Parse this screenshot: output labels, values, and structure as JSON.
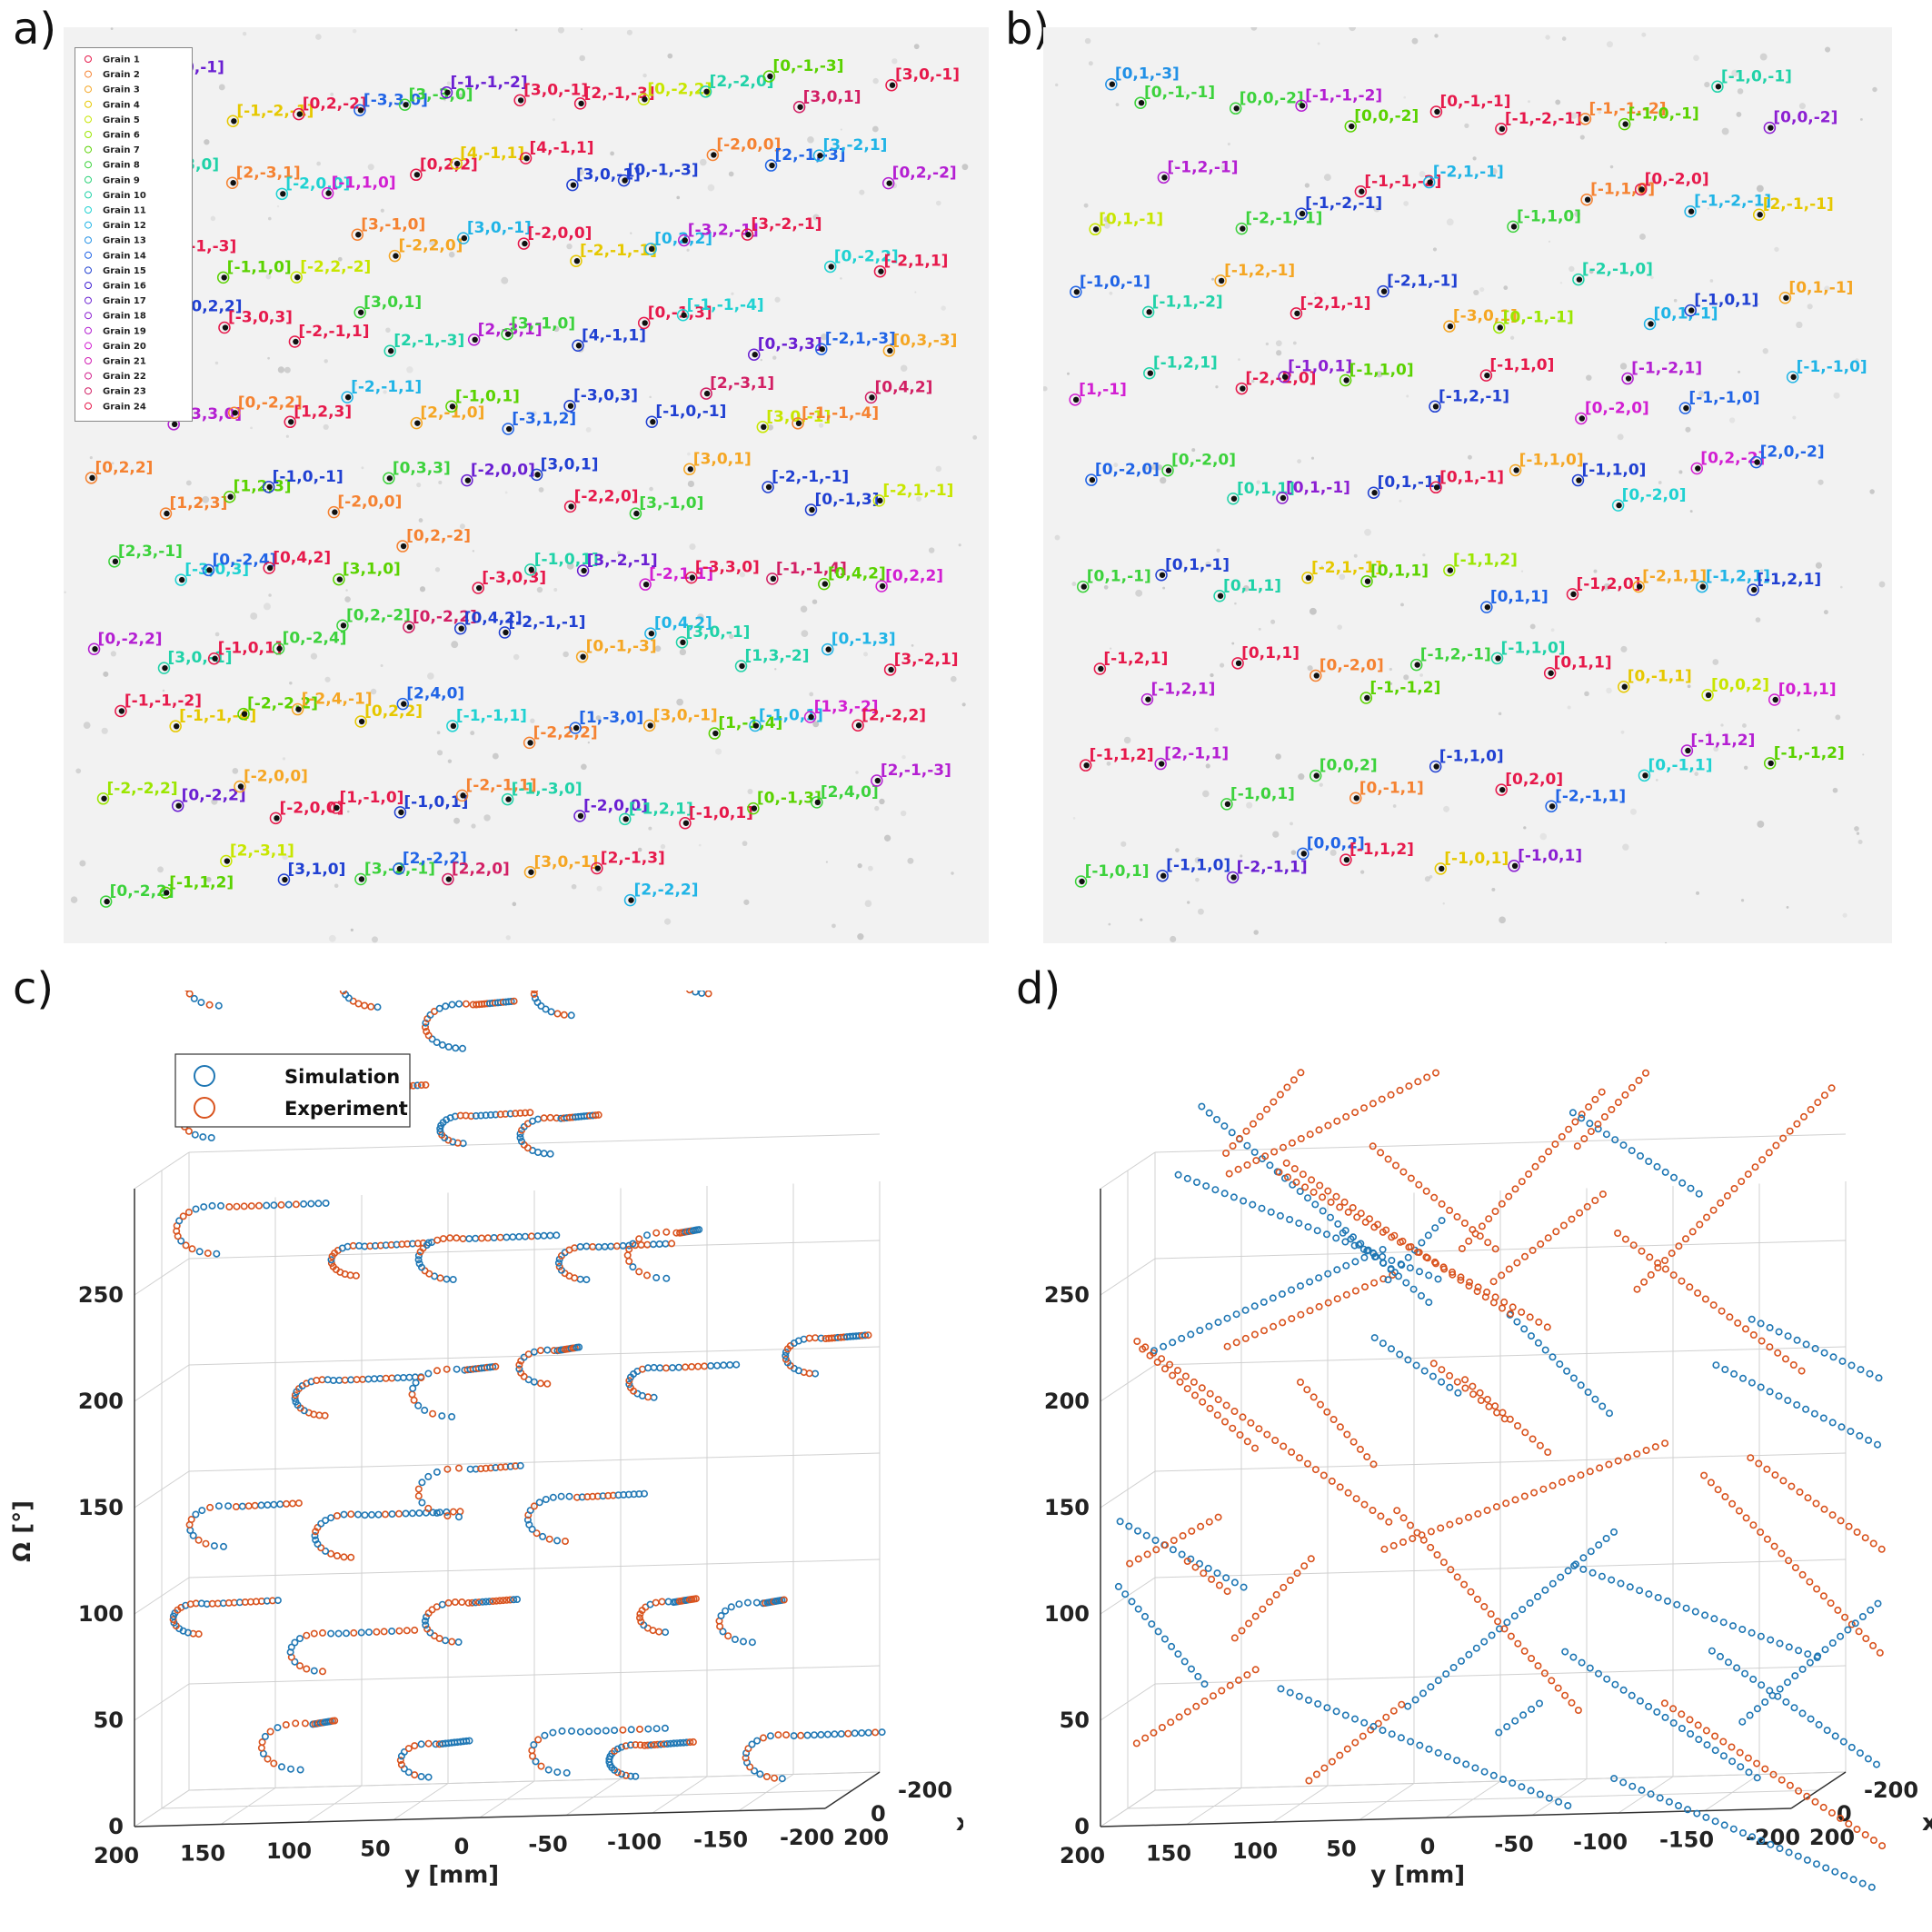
{
  "labels": {
    "a": "a)",
    "b": "b)",
    "c": "c)",
    "d": "d)"
  },
  "colors": {
    "simulation": "#1f77b4",
    "experiment": "#d9531e"
  },
  "legend_a": {
    "grains": [
      "Grain 1",
      "Grain 2",
      "Grain 3",
      "Grain 4",
      "Grain 5",
      "Grain 6",
      "Grain 7",
      "Grain 8",
      "Grain 9",
      "Grain 10",
      "Grain 11",
      "Grain 12",
      "Grain 13",
      "Grain 14",
      "Grain 15",
      "Grain 16",
      "Grain 17",
      "Grain 18",
      "Grain 19",
      "Grain 20",
      "Grain 21",
      "Grain 22",
      "Grain 23",
      "Grain 24"
    ],
    "grain_colors": [
      "#e6194b",
      "#f58231",
      "#f5a623",
      "#e6c800",
      "#c8e600",
      "#9be600",
      "#5ad200",
      "#3cd23c",
      "#2ad278",
      "#20d2a8",
      "#20d2d2",
      "#20b4e6",
      "#2090e6",
      "#2064e6",
      "#2040d2",
      "#4020d2",
      "#6a1fd2",
      "#8c1fd2",
      "#b41fd2",
      "#d21fd2",
      "#d21fb4",
      "#d21f8c",
      "#d21f64",
      "#e6194b"
    ]
  },
  "panel_a_labels": [
    [
      "[3,1,0]",
      "#e6194b"
    ],
    [
      "[-1,0,-1]",
      "#6a1fd2"
    ],
    [
      "[-1,-2,-1]",
      "#e6c800"
    ],
    [
      "[0,2,-2]",
      "#e6194b"
    ],
    [
      "[-3,3,0]",
      "#2064e6"
    ],
    [
      "[3,-3,0]",
      "#3cd23c"
    ],
    [
      "[-1,-1,-2]",
      "#6a1fd2"
    ],
    [
      "[3,0,-1]",
      "#e6194b"
    ],
    [
      "[2,-1,-3]",
      "#e6194b"
    ],
    [
      "[0,-2,2]",
      "#c8e600"
    ],
    [
      "[2,-2,0]",
      "#20d2a8"
    ],
    [
      "[0,-1,-3]",
      "#5ad200"
    ],
    [
      "[3,0,1]",
      "#d21f64"
    ],
    [
      "[3,0,-1]",
      "#e6194b"
    ],
    [
      "[-3,0,3]",
      "#3cd23c"
    ],
    [
      "[-3,3,0]",
      "#20d2a8"
    ],
    [
      "[2,-3,1]",
      "#f58231"
    ],
    [
      "[-2,0,0]",
      "#20d2d2"
    ],
    [
      "[-1,1,0]",
      "#d21fd2"
    ],
    [
      "[0,2,2]",
      "#e6194b"
    ],
    [
      "[4,-1,1]",
      "#e6c800"
    ],
    [
      "[4,-1,1]",
      "#e6194b"
    ],
    [
      "[3,0,-1]",
      "#2040d2"
    ],
    [
      "[0,-1,-3]",
      "#2040d2"
    ],
    [
      "[-2,0,0]",
      "#f58231"
    ],
    [
      "[2,-1,-3]",
      "#2064e6"
    ],
    [
      "[3,-2,1]",
      "#20b4e6"
    ],
    [
      "[0,2,-2]",
      "#b41fd2"
    ],
    [
      "[-2,-1,-1]",
      "#b41fd2"
    ],
    [
      "[2,-1,-3]",
      "#e6194b"
    ],
    [
      "[-1,1,0]",
      "#5ad200"
    ],
    [
      "[-2,2,-2]",
      "#c8e600"
    ],
    [
      "[3,-1,0]",
      "#f58231"
    ],
    [
      "[-2,2,0]",
      "#f5a623"
    ],
    [
      "[3,0,-1]",
      "#20b4e6"
    ],
    [
      "[-2,0,0]",
      "#e6194b"
    ],
    [
      "[-2,-1,-1]",
      "#e6c800"
    ],
    [
      "[0,2,2]",
      "#20b4e6"
    ],
    [
      "[-3,2,-1]",
      "#b41fd2"
    ],
    [
      "[3,-2,-1]",
      "#e6194b"
    ],
    [
      "[0,-2,2]",
      "#20d2d2"
    ],
    [
      "[-2,1,1]",
      "#e6194b"
    ],
    [
      "[-2,0,0]",
      "#e6194b"
    ],
    [
      "[0,2,2]",
      "#2040d2"
    ],
    [
      "[-3,0,3]",
      "#e6194b"
    ],
    [
      "[-2,-1,1]",
      "#e6194b"
    ],
    [
      "[3,0,1]",
      "#3cd23c"
    ],
    [
      "[2,-1,-3]",
      "#20d2a8"
    ],
    [
      "[2,-3,1]",
      "#b41fd2"
    ],
    [
      "[3,-1,0]",
      "#3cd23c"
    ],
    [
      "[4,-1,1]",
      "#2040d2"
    ],
    [
      "[0,-1,3]",
      "#e6194b"
    ],
    [
      "[-1,-1,-4]",
      "#20d2d2"
    ],
    [
      "[0,-3,3]",
      "#6a1fd2"
    ],
    [
      "[-2,1,-3]",
      "#2064e6"
    ],
    [
      "[0,3,-3]",
      "#f5a623"
    ],
    [
      "[-1,-1,0]",
      "#5ad200"
    ],
    [
      "[-3,3,0]",
      "#b41fd2"
    ],
    [
      "[0,-2,2]",
      "#f58231"
    ],
    [
      "[1,2,3]",
      "#e6194b"
    ],
    [
      "[-2,-1,1]",
      "#20b4e6"
    ],
    [
      "[2,-1,0]",
      "#f5a623"
    ],
    [
      "[-1,0,1]",
      "#5ad200"
    ],
    [
      "[-3,1,2]",
      "#2064e6"
    ],
    [
      "[-3,0,3]",
      "#2040d2"
    ],
    [
      "[-1,0,-1]",
      "#2040d2"
    ],
    [
      "[2,-3,1]",
      "#d21f64"
    ],
    [
      "[3,0,-1]",
      "#c8e600"
    ],
    [
      "[-1,-1,-4]",
      "#f58231"
    ],
    [
      "[0,4,2]",
      "#d21f64"
    ],
    [
      "[0,2,2]",
      "#f58231"
    ],
    [
      "[1,2,3]",
      "#f58231"
    ],
    [
      "[1,2,3]",
      "#5ad200"
    ],
    [
      "[-1,0,-1]",
      "#2040d2"
    ],
    [
      "[-2,0,0]",
      "#f58231"
    ],
    [
      "[0,3,3]",
      "#3cd23c"
    ],
    [
      "[-2,0,0]",
      "#6a1fd2"
    ],
    [
      "[3,0,1]",
      "#2040d2"
    ],
    [
      "[-2,2,0]",
      "#e6194b"
    ],
    [
      "[3,-1,0]",
      "#3cd23c"
    ],
    [
      "[3,0,1]",
      "#f5a623"
    ],
    [
      "[-2,-1,-1]",
      "#2040d2"
    ],
    [
      "[0,-1,3]",
      "#2040d2"
    ],
    [
      "[-2,1,-1]",
      "#c8e600"
    ],
    [
      "[2,3,-1]",
      "#3cd23c"
    ],
    [
      "[-3,0,3]",
      "#20d2d2"
    ],
    [
      "[0,-2,4]",
      "#2064e6"
    ],
    [
      "[0,4,2]",
      "#e6194b"
    ],
    [
      "[3,1,0]",
      "#5ad200"
    ],
    [
      "[0,2,-2]",
      "#f58231"
    ],
    [
      "[-3,0,3]",
      "#e6194b"
    ],
    [
      "[-1,0,1]",
      "#20d2a8"
    ],
    [
      "[3,-2,-1]",
      "#6a1fd2"
    ],
    [
      "[-2,1,1]",
      "#d21fd2"
    ],
    [
      "[-3,3,0]",
      "#e6194b"
    ],
    [
      "[-1,-1,4]",
      "#d21f64"
    ],
    [
      "[0,4,2]",
      "#5ad200"
    ],
    [
      "[0,2,2]",
      "#d21fd2"
    ],
    [
      "[0,-2,2]",
      "#b41fd2"
    ],
    [
      "[3,0,-1]",
      "#20d2a8"
    ],
    [
      "[-1,0,1]",
      "#e6194b"
    ],
    [
      "[0,-2,4]",
      "#3cd23c"
    ],
    [
      "[0,2,-2]",
      "#3cd23c"
    ],
    [
      "[0,-2,2]",
      "#d21f64"
    ],
    [
      "[0,4,2]",
      "#2040d2"
    ],
    [
      "[-2,-1,-1]",
      "#2040d2"
    ],
    [
      "[0,-1,-3]",
      "#f5a623"
    ],
    [
      "[0,4,2]",
      "#20b4e6"
    ],
    [
      "[3,0,-1]",
      "#20d2a8"
    ],
    [
      "[1,3,-2]",
      "#20d2a8"
    ],
    [
      "[0,-1,3]",
      "#20b4e6"
    ],
    [
      "[3,-2,1]",
      "#e6194b"
    ],
    [
      "[-1,-1,-2]",
      "#e6194b"
    ],
    [
      "[-1,-1,-4]",
      "#e6c800"
    ],
    [
      "[-2,-2,2]",
      "#5ad200"
    ],
    [
      "[-2,4,-1]",
      "#f5a623"
    ],
    [
      "[0,2,2]",
      "#e6c800"
    ],
    [
      "[2,4,0]",
      "#2064e6"
    ],
    [
      "[-1,-1,1]",
      "#20d2d2"
    ],
    [
      "[-2,2,2]",
      "#f58231"
    ],
    [
      "[1,-3,0]",
      "#2064e6"
    ],
    [
      "[3,0,-1]",
      "#f5a623"
    ],
    [
      "[1,-1,4]",
      "#5ad200"
    ],
    [
      "[-1,0,1]",
      "#20b4e6"
    ],
    [
      "[1,3,-2]",
      "#d21fd2"
    ],
    [
      "[2,-2,2]",
      "#e6194b"
    ],
    [
      "[-2,-2,2]",
      "#9be600"
    ],
    [
      "[0,-2,2]",
      "#6a1fd2"
    ],
    [
      "[-2,0,0]",
      "#f5a623"
    ],
    [
      "[-2,0,0]",
      "#e6194b"
    ],
    [
      "[1,-1,0]",
      "#e6194b"
    ],
    [
      "[-1,0,1]",
      "#2040d2"
    ],
    [
      "[-2,-1,1]",
      "#f58231"
    ],
    [
      "[-1,-3,0]",
      "#20d2a8"
    ],
    [
      "[-2,0,0]",
      "#6a1fd2"
    ],
    [
      "[-1,2,1]",
      "#20d2a8"
    ],
    [
      "[-1,0,1]",
      "#e6194b"
    ],
    [
      "[0,-1,3]",
      "#5ad200"
    ],
    [
      "[2,4,0]",
      "#3cd23c"
    ],
    [
      "[2,-1,-3]",
      "#b41fd2"
    ],
    [
      "[0,-2,2]",
      "#3cd23c"
    ],
    [
      "[-1,1,2]",
      "#5ad200"
    ],
    [
      "[2,-3,1]",
      "#c8e600"
    ],
    [
      "[3,1,0]",
      "#2040d2"
    ],
    [
      "[3,-2,-1]",
      "#3cd23c"
    ],
    [
      "[2,-2,2]",
      "#2064e6"
    ],
    [
      "[2,2,0]",
      "#d21f64"
    ],
    [
      "[3,0,-1]",
      "#f5a623"
    ],
    [
      "[2,-1,3]",
      "#e6194b"
    ],
    [
      "[2,-2,2]",
      "#20b4e6"
    ]
  ],
  "panel_b_labels": [
    [
      "[0,1,-3]",
      "#2090e6"
    ],
    [
      "[0,-1,-1]",
      "#3cd23c"
    ],
    [
      "[0,0,-2]",
      "#3cd23c"
    ],
    [
      "[-1,-1,-2]",
      "#b41fd2"
    ],
    [
      "[0,0,-2]",
      "#5ad200"
    ],
    [
      "[0,-1,-1]",
      "#e6194b"
    ],
    [
      "[-1,-2,-1]",
      "#e6194b"
    ],
    [
      "[-1,-1,-2]",
      "#f58231"
    ],
    [
      "[-1,0,-1]",
      "#5ad200"
    ],
    [
      "[-1,0,-1]",
      "#20d2a8"
    ],
    [
      "[0,0,-2]",
      "#8c1fd2"
    ],
    [
      "[0,1,-1]",
      "#c8e600"
    ],
    [
      "[-1,2,-1]",
      "#b41fd2"
    ],
    [
      "[-2,-1,-1]",
      "#3cd23c"
    ],
    [
      "[-1,-2,-1]",
      "#2040d2"
    ],
    [
      "[-1,-1,-2]",
      "#e6194b"
    ],
    [
      "[-2,1,-1]",
      "#20b4e6"
    ],
    [
      "[-1,1,0]",
      "#3cd23c"
    ],
    [
      "[-1,1,0]",
      "#f58231"
    ],
    [
      "[0,-2,0]",
      "#e6194b"
    ],
    [
      "[-1,-2,-1]",
      "#20b4e6"
    ],
    [
      "[2,-1,-1]",
      "#e6c800"
    ],
    [
      "[-1,0,-1]",
      "#2064e6"
    ],
    [
      "[-1,1,-2]",
      "#20d2a8"
    ],
    [
      "[-1,2,-1]",
      "#f5a623"
    ],
    [
      "[-2,1,-1]",
      "#e6194b"
    ],
    [
      "[-2,1,-1]",
      "#2040d2"
    ],
    [
      "[-3,0,1]",
      "#f5a623"
    ],
    [
      "[0,-1,-1]",
      "#9be600"
    ],
    [
      "[-2,-1,0]",
      "#20d2a8"
    ],
    [
      "[0,1,-1]",
      "#20b4e6"
    ],
    [
      "[-1,0,1]",
      "#2040d2"
    ],
    [
      "[0,1,-1]",
      "#f5a623"
    ],
    [
      "[1,-1]",
      "#d21fd2"
    ],
    [
      "[-1,2,1]",
      "#20d2a8"
    ],
    [
      "[-2,-2,0]",
      "#e6194b"
    ],
    [
      "[-1,0,1]",
      "#8c1fd2"
    ],
    [
      "[-1,1,0]",
      "#5ad200"
    ],
    [
      "[-1,2,-1]",
      "#2040d2"
    ],
    [
      "[-1,1,0]",
      "#e6194b"
    ],
    [
      "[0,-2,0]",
      "#d21fd2"
    ],
    [
      "[-1,-2,1]",
      "#b41fd2"
    ],
    [
      "[-1,-1,0]",
      "#2064e6"
    ],
    [
      "[-1,-1,0]",
      "#20b4e6"
    ],
    [
      "[0,-2,0]",
      "#2064e6"
    ],
    [
      "[0,-2,0]",
      "#3cd23c"
    ],
    [
      "[0,1,1]",
      "#20d2a8"
    ],
    [
      "[0,1,-1]",
      "#8c1fd2"
    ],
    [
      "[0,1,-1]",
      "#2040d2"
    ],
    [
      "[0,1,-1]",
      "#e6194b"
    ],
    [
      "[-1,1,0]",
      "#f5a623"
    ],
    [
      "[-1,1,0]",
      "#2040d2"
    ],
    [
      "[0,-2,0]",
      "#20d2d2"
    ],
    [
      "[0,2,-2]",
      "#d21fd2"
    ],
    [
      "[2,0,-2]",
      "#2064e6"
    ],
    [
      "[0,1,-1]",
      "#3cd23c"
    ],
    [
      "[0,1,-1]",
      "#2040d2"
    ],
    [
      "[0,1,1]",
      "#20d2a8"
    ],
    [
      "[-2,1,-1]",
      "#e6c800"
    ],
    [
      "[0,1,1]",
      "#5ad200"
    ],
    [
      "[-1,1,2]",
      "#9be600"
    ],
    [
      "[0,1,1]",
      "#2064e6"
    ],
    [
      "[-1,2,0]",
      "#e6194b"
    ],
    [
      "[-2,1,1]",
      "#f5a623"
    ],
    [
      "[-1,2,1]",
      "#20b4e6"
    ],
    [
      "[-1,2,1]",
      "#2040d2"
    ],
    [
      "[-1,2,1]",
      "#e6194b"
    ],
    [
      "[-1,2,1]",
      "#b41fd2"
    ],
    [
      "[0,1,1]",
      "#e6194b"
    ],
    [
      "[0,-2,0]",
      "#f58231"
    ],
    [
      "[-1,-1,2]",
      "#5ad200"
    ],
    [
      "[-1,2,-1]",
      "#3cd23c"
    ],
    [
      "[-1,1,0]",
      "#20d2a8"
    ],
    [
      "[0,1,1]",
      "#e6194b"
    ],
    [
      "[0,-1,1]",
      "#e6c800"
    ],
    [
      "[0,0,2]",
      "#c8e600"
    ],
    [
      "[0,1,1]",
      "#d21fd2"
    ],
    [
      "[-1,1,2]",
      "#e6194b"
    ],
    [
      "[2,-1,1]",
      "#b41fd2"
    ],
    [
      "[-1,0,1]",
      "#3cd23c"
    ],
    [
      "[0,0,2]",
      "#3cd23c"
    ],
    [
      "[0,-1,1]",
      "#f58231"
    ],
    [
      "[-1,1,0]",
      "#2040d2"
    ],
    [
      "[0,2,0]",
      "#e6194b"
    ],
    [
      "[-2,-1,1]",
      "#2064e6"
    ],
    [
      "[0,-1,1]",
      "#20d2d2"
    ],
    [
      "[-1,1,2]",
      "#b41fd2"
    ],
    [
      "[-1,-1,2]",
      "#5ad200"
    ],
    [
      "[-1,0,1]",
      "#3cd23c"
    ],
    [
      "[-1,1,0]",
      "#2040d2"
    ],
    [
      "[-2,-1,1]",
      "#6a1fd2"
    ],
    [
      "[0,0,2]",
      "#2064e6"
    ],
    [
      "[-1,1,2]",
      "#e6194b"
    ],
    [
      "[-1,0,1]",
      "#e6c800"
    ],
    [
      "[-1,0,1]",
      "#8c1fd2"
    ]
  ],
  "chart_data": [
    {
      "panel": "c",
      "type": "scatter",
      "title": "",
      "xlabel": "x [mm]",
      "ylabel": "y [mm]",
      "zlabel": "Ω [°]",
      "y_ticks": [
        "200",
        "150",
        "100",
        "50",
        "0",
        "-50",
        "-100",
        "-150",
        "-200"
      ],
      "x_ticks": [
        "200",
        "0",
        "-200"
      ],
      "z_ticks": [
        "0",
        "50",
        "100",
        "150",
        "200",
        "250"
      ],
      "ylim": [
        -200,
        200
      ],
      "xlim": [
        -200,
        200
      ],
      "zlim": [
        0,
        250
      ],
      "legend": [
        "Simulation",
        "Experiment"
      ],
      "legend_position": "top-left",
      "series": [
        {
          "name": "Simulation",
          "description": "curved arc-shaped spot trajectories (one per reflection) plotted over Ω from 0 to 270°"
        },
        {
          "name": "Experiment",
          "description": "measured spot trajectories overlapping the simulated arcs"
        }
      ]
    },
    {
      "panel": "d",
      "type": "scatter",
      "title": "",
      "xlabel": "x [mm]",
      "ylabel": "y [mm]",
      "zlabel": "",
      "y_ticks": [
        "200",
        "150",
        "100",
        "50",
        "0",
        "-50",
        "-100",
        "-150",
        "-200"
      ],
      "x_ticks": [
        "200",
        "0",
        "-200"
      ],
      "z_ticks": [
        "0",
        "50",
        "100",
        "150",
        "200",
        "250"
      ],
      "ylim": [
        -200,
        200
      ],
      "xlim": [
        -200,
        200
      ],
      "zlim": [
        0,
        250
      ],
      "series": [
        {
          "name": "Simulation",
          "description": "straight diagonal spot trajectories crossing the detector over Ω"
        },
        {
          "name": "Experiment",
          "description": "measured straight trajectories following the simulated ones"
        }
      ]
    }
  ]
}
